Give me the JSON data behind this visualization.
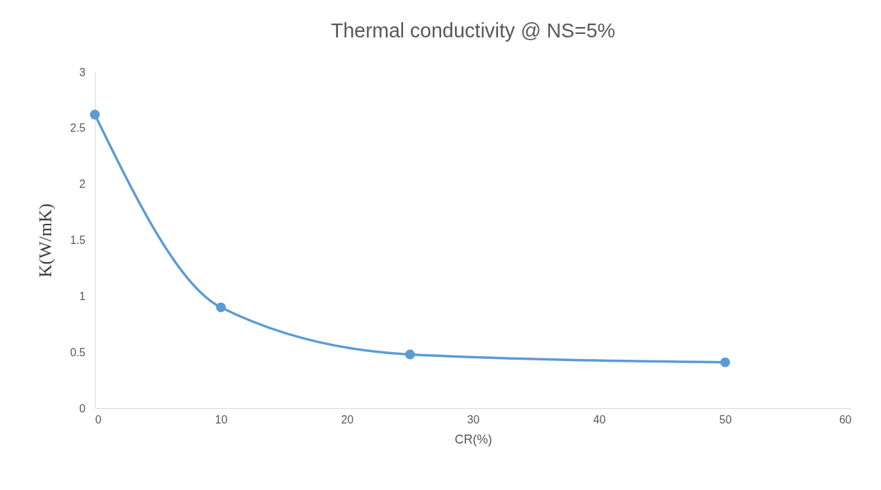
{
  "chart_data": {
    "type": "line",
    "title": "Thermal conductivity @ NS=5%",
    "xlabel": "CR(%)",
    "ylabel": "K(W/mK)",
    "x": [
      0,
      10,
      25,
      50
    ],
    "series": [
      {
        "color": "#5b9bd5",
        "values": [
          2.62,
          0.9,
          0.48,
          0.41
        ]
      }
    ],
    "xlim": [
      0,
      60
    ],
    "xticks": [
      0,
      10,
      20,
      30,
      40,
      50,
      60
    ],
    "ylim": [
      0,
      3
    ],
    "yticks": [
      0,
      0.5,
      1,
      1.5,
      2,
      2.5,
      3
    ],
    "grid": false,
    "legend": false,
    "marker": "circle",
    "line_style": "solid"
  }
}
